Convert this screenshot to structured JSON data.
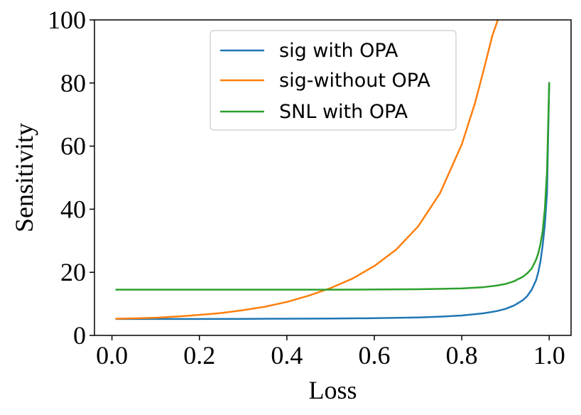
{
  "chart_data": {
    "type": "line",
    "title": "",
    "xlabel": "Loss",
    "ylabel": "Sensitivity",
    "xlim": [
      -0.04,
      1.05
    ],
    "ylim": [
      0,
      100
    ],
    "xticks": [
      {
        "value": 0.0,
        "label": "0.0"
      },
      {
        "value": 0.2,
        "label": "0.2"
      },
      {
        "value": 0.4,
        "label": "0.4"
      },
      {
        "value": 0.6,
        "label": "0.6"
      },
      {
        "value": 0.8,
        "label": "0.8"
      },
      {
        "value": 1.0,
        "label": "1.0"
      }
    ],
    "yticks": [
      {
        "value": 0,
        "label": "0"
      },
      {
        "value": 20,
        "label": "20"
      },
      {
        "value": 40,
        "label": "40"
      },
      {
        "value": 60,
        "label": "60"
      },
      {
        "value": 80,
        "label": "80"
      },
      {
        "value": 100,
        "label": "100"
      }
    ],
    "grid": false,
    "legend_position": "top-center",
    "series": [
      {
        "name": "sig with OPA",
        "color": "#1f77b4",
        "x": [
          0.01,
          0.1,
          0.2,
          0.3,
          0.4,
          0.5,
          0.6,
          0.7,
          0.75,
          0.8,
          0.85,
          0.88,
          0.9,
          0.92,
          0.94,
          0.95,
          0.96,
          0.97,
          0.975,
          0.98,
          0.985,
          0.99,
          0.995,
          1.0
        ],
        "y": [
          5.2,
          5.2,
          5.2,
          5.25,
          5.3,
          5.35,
          5.45,
          5.7,
          5.95,
          6.3,
          7.0,
          7.7,
          8.4,
          9.5,
          11.2,
          12.5,
          14.5,
          17.5,
          20.0,
          23.5,
          28.5,
          35.0,
          45.0,
          80.0
        ]
      },
      {
        "name": "sig-without OPA",
        "color": "#ff7f0e",
        "x": [
          0.01,
          0.05,
          0.1,
          0.15,
          0.2,
          0.25,
          0.3,
          0.35,
          0.4,
          0.45,
          0.5,
          0.55,
          0.6,
          0.65,
          0.7,
          0.75,
          0.8,
          0.83,
          0.85,
          0.87,
          0.885
        ],
        "y": [
          5.3,
          5.4,
          5.6,
          6.0,
          6.5,
          7.1,
          8.0,
          9.1,
          10.6,
          12.6,
          15.0,
          18.0,
          22.0,
          27.2,
          34.5,
          45.0,
          60.5,
          73.5,
          84.0,
          95.0,
          101.0
        ]
      },
      {
        "name": "SNL with OPA",
        "color": "#2ca02c",
        "x": [
          0.01,
          0.1,
          0.2,
          0.3,
          0.4,
          0.5,
          0.6,
          0.7,
          0.75,
          0.8,
          0.85,
          0.88,
          0.9,
          0.92,
          0.94,
          0.95,
          0.96,
          0.97,
          0.975,
          0.98,
          0.985,
          0.99,
          0.995,
          1.0
        ],
        "y": [
          14.5,
          14.5,
          14.5,
          14.5,
          14.5,
          14.5,
          14.55,
          14.65,
          14.75,
          14.9,
          15.3,
          15.8,
          16.3,
          17.2,
          18.6,
          19.7,
          21.2,
          24.0,
          26.0,
          29.0,
          33.0,
          40.0,
          52.0,
          80.0
        ]
      }
    ]
  }
}
